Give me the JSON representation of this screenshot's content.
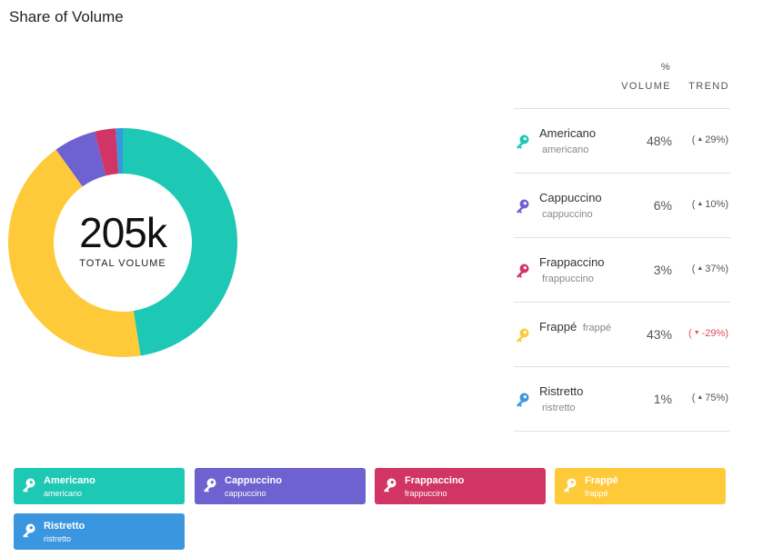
{
  "title": "Share of Volume",
  "colors": {
    "americano": "#1DC8B5",
    "cappuccino": "#6E62D0",
    "frappaccino": "#D13566",
    "frappe": "#FFCA3A",
    "ristretto": "#3B96E0"
  },
  "center": {
    "value": "205k",
    "label": "TOTAL VOLUME"
  },
  "table": {
    "header_pct": "%",
    "header_volume": "VOLUME",
    "header_trend": "TREND"
  },
  "chart_data": {
    "type": "pie",
    "donut": true,
    "series": [
      {
        "name": "Americano",
        "sub": "americano",
        "value": 48,
        "pct_label": "48%",
        "trend_label": "29%",
        "trend_dir": "up",
        "color": "#1DC8B5"
      },
      {
        "name": "Cappuccino",
        "sub": "cappuccino",
        "value": 6,
        "pct_label": "6%",
        "trend_label": "10%",
        "trend_dir": "up",
        "color": "#6E62D0"
      },
      {
        "name": "Frappaccino",
        "sub": "frappuccino",
        "value": 3,
        "pct_label": "3%",
        "trend_label": "37%",
        "trend_dir": "up",
        "color": "#D13566"
      },
      {
        "name": "Frappé",
        "sub": "frappé",
        "value": 43,
        "pct_label": "43%",
        "trend_label": "-29%",
        "trend_dir": "down",
        "color": "#FFCA3A"
      },
      {
        "name": "Ristretto",
        "sub": "ristretto",
        "value": 1,
        "pct_label": "1%",
        "trend_label": "75%",
        "trend_dir": "up",
        "color": "#3B96E0"
      }
    ],
    "draw_order": [
      "Americano",
      "Frappé",
      "Cappuccino",
      "Frappaccino",
      "Ristretto"
    ]
  },
  "legend": [
    {
      "label": "Americano",
      "sub": "americano",
      "color": "#1DC8B5"
    },
    {
      "label": "Cappuccino",
      "sub": "cappuccino",
      "color": "#6E62D0"
    },
    {
      "label": "Frappaccino",
      "sub": "frappuccino",
      "color": "#D13566"
    },
    {
      "label": "Frappé",
      "sub": "frappé",
      "color": "#FFCA3A"
    },
    {
      "label": "Ristretto",
      "sub": "ristretto",
      "color": "#3B96E0"
    }
  ],
  "icons": {
    "row_icon": "key-icon",
    "legend_icon": "key-icon"
  }
}
